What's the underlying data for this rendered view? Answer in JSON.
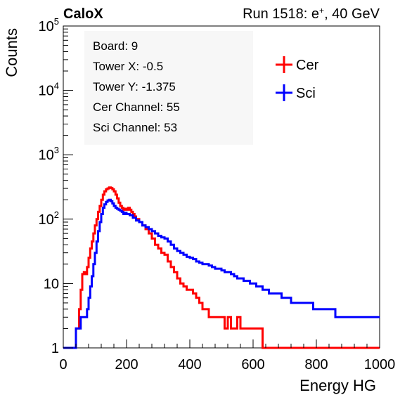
{
  "header": {
    "left": "CaloX",
    "right_prefix": "Run 1518: e",
    "right_sup": "+",
    "right_suffix": ", 40 GeV"
  },
  "chart_data": {
    "type": "line",
    "xlabel": "Energy HG",
    "ylabel": "Counts",
    "xlim": [
      0,
      1000
    ],
    "ylim": [
      1,
      100000
    ],
    "log_y": true,
    "grid": false,
    "x_ticks": [
      "0",
      "200",
      "400",
      "600",
      "800",
      "1000"
    ],
    "y_ticks": [
      {
        "value": 1,
        "label": "1",
        "sup": ""
      },
      {
        "value": 10,
        "label": "10",
        "sup": ""
      },
      {
        "value": 100,
        "label": "10",
        "sup": "2"
      },
      {
        "value": 1000,
        "label": "10",
        "sup": "3"
      },
      {
        "value": 10000,
        "label": "10",
        "sup": "4"
      },
      {
        "value": 100000,
        "label": "10",
        "sup": "5"
      }
    ],
    "info_lines": [
      "Board: 9",
      "Tower X: -0.5",
      "Tower Y: -1.375",
      "Cer Channel: 55",
      "Sci Channel: 53"
    ],
    "legend_position": "top-right",
    "series": [
      {
        "name": "Cer",
        "color": "#ff0000",
        "points": [
          [
            0,
            1
          ],
          [
            30,
            1
          ],
          [
            40,
            2
          ],
          [
            50,
            4
          ],
          [
            55,
            8
          ],
          [
            60,
            14
          ],
          [
            65,
            15
          ],
          [
            70,
            14
          ],
          [
            75,
            18
          ],
          [
            80,
            25
          ],
          [
            85,
            35
          ],
          [
            90,
            45
          ],
          [
            95,
            60
          ],
          [
            100,
            80
          ],
          [
            105,
            100
          ],
          [
            110,
            130
          ],
          [
            115,
            160
          ],
          [
            120,
            200
          ],
          [
            125,
            240
          ],
          [
            130,
            270
          ],
          [
            135,
            290
          ],
          [
            140,
            300
          ],
          [
            145,
            310
          ],
          [
            150,
            305
          ],
          [
            155,
            290
          ],
          [
            160,
            270
          ],
          [
            165,
            240
          ],
          [
            170,
            210
          ],
          [
            175,
            180
          ],
          [
            180,
            160
          ],
          [
            185,
            150
          ],
          [
            190,
            140
          ],
          [
            195,
            145
          ],
          [
            200,
            140
          ],
          [
            205,
            150
          ],
          [
            210,
            140
          ],
          [
            215,
            130
          ],
          [
            220,
            120
          ],
          [
            225,
            110
          ],
          [
            230,
            100
          ],
          [
            240,
            90
          ],
          [
            250,
            80
          ],
          [
            260,
            70
          ],
          [
            270,
            60
          ],
          [
            280,
            50
          ],
          [
            290,
            40
          ],
          [
            300,
            35
          ],
          [
            310,
            30
          ],
          [
            320,
            28
          ],
          [
            330,
            22
          ],
          [
            340,
            18
          ],
          [
            350,
            15
          ],
          [
            360,
            12
          ],
          [
            370,
            10
          ],
          [
            380,
            9
          ],
          [
            390,
            8
          ],
          [
            400,
            8
          ],
          [
            410,
            7
          ],
          [
            420,
            6
          ],
          [
            430,
            5
          ],
          [
            440,
            4
          ],
          [
            450,
            4
          ],
          [
            460,
            3
          ],
          [
            470,
            3
          ],
          [
            480,
            3
          ],
          [
            490,
            3
          ],
          [
            500,
            3
          ],
          [
            510,
            2
          ],
          [
            520,
            3
          ],
          [
            530,
            2
          ],
          [
            540,
            2
          ],
          [
            550,
            3
          ],
          [
            560,
            2
          ],
          [
            570,
            2
          ],
          [
            580,
            2
          ],
          [
            590,
            2
          ],
          [
            600,
            2
          ],
          [
            610,
            2
          ],
          [
            620,
            2
          ],
          [
            630,
            1
          ],
          [
            640,
            1
          ],
          [
            700,
            1
          ],
          [
            800,
            1
          ],
          [
            900,
            1
          ],
          [
            1000,
            1
          ]
        ]
      },
      {
        "name": "Sci",
        "color": "#0000ff",
        "points": [
          [
            0,
            1
          ],
          [
            30,
            1
          ],
          [
            40,
            2
          ],
          [
            50,
            2
          ],
          [
            55,
            3
          ],
          [
            60,
            3
          ],
          [
            65,
            3
          ],
          [
            70,
            3
          ],
          [
            75,
            4
          ],
          [
            80,
            6
          ],
          [
            85,
            9
          ],
          [
            90,
            13
          ],
          [
            95,
            20
          ],
          [
            100,
            30
          ],
          [
            105,
            45
          ],
          [
            110,
            65
          ],
          [
            115,
            90
          ],
          [
            120,
            120
          ],
          [
            125,
            150
          ],
          [
            130,
            170
          ],
          [
            135,
            185
          ],
          [
            140,
            195
          ],
          [
            145,
            200
          ],
          [
            150,
            190
          ],
          [
            155,
            175
          ],
          [
            160,
            160
          ],
          [
            165,
            150
          ],
          [
            170,
            145
          ],
          [
            175,
            140
          ],
          [
            180,
            135
          ],
          [
            185,
            130
          ],
          [
            190,
            120
          ],
          [
            195,
            125
          ],
          [
            200,
            120
          ],
          [
            210,
            115
          ],
          [
            220,
            105
          ],
          [
            230,
            95
          ],
          [
            240,
            90
          ],
          [
            250,
            80
          ],
          [
            260,
            75
          ],
          [
            270,
            70
          ],
          [
            280,
            65
          ],
          [
            290,
            60
          ],
          [
            300,
            55
          ],
          [
            310,
            52
          ],
          [
            320,
            50
          ],
          [
            330,
            45
          ],
          [
            340,
            40
          ],
          [
            350,
            35
          ],
          [
            360,
            32
          ],
          [
            370,
            30
          ],
          [
            380,
            28
          ],
          [
            390,
            26
          ],
          [
            400,
            25
          ],
          [
            410,
            24
          ],
          [
            420,
            22
          ],
          [
            430,
            21
          ],
          [
            440,
            20
          ],
          [
            450,
            20
          ],
          [
            460,
            19
          ],
          [
            470,
            18
          ],
          [
            480,
            17
          ],
          [
            490,
            17
          ],
          [
            500,
            16
          ],
          [
            510,
            15
          ],
          [
            520,
            15
          ],
          [
            530,
            14
          ],
          [
            540,
            13
          ],
          [
            550,
            12
          ],
          [
            560,
            12
          ],
          [
            570,
            11
          ],
          [
            580,
            11
          ],
          [
            590,
            10
          ],
          [
            600,
            10
          ],
          [
            610,
            9
          ],
          [
            620,
            9
          ],
          [
            630,
            8
          ],
          [
            640,
            8
          ],
          [
            650,
            7
          ],
          [
            660,
            7
          ],
          [
            670,
            7
          ],
          [
            680,
            7
          ],
          [
            690,
            6
          ],
          [
            700,
            6
          ],
          [
            710,
            6
          ],
          [
            720,
            5
          ],
          [
            730,
            5
          ],
          [
            740,
            5
          ],
          [
            750,
            5
          ],
          [
            760,
            5
          ],
          [
            770,
            5
          ],
          [
            780,
            5
          ],
          [
            790,
            4
          ],
          [
            800,
            4
          ],
          [
            810,
            4
          ],
          [
            820,
            4
          ],
          [
            830,
            4
          ],
          [
            840,
            4
          ],
          [
            850,
            4
          ],
          [
            860,
            3
          ],
          [
            870,
            3
          ],
          [
            880,
            3
          ],
          [
            890,
            3
          ],
          [
            900,
            3
          ],
          [
            910,
            3
          ],
          [
            920,
            3
          ],
          [
            930,
            3
          ],
          [
            940,
            3
          ],
          [
            950,
            3
          ],
          [
            960,
            3
          ],
          [
            970,
            3
          ],
          [
            980,
            3
          ],
          [
            990,
            3
          ],
          [
            1000,
            3
          ]
        ]
      }
    ]
  }
}
